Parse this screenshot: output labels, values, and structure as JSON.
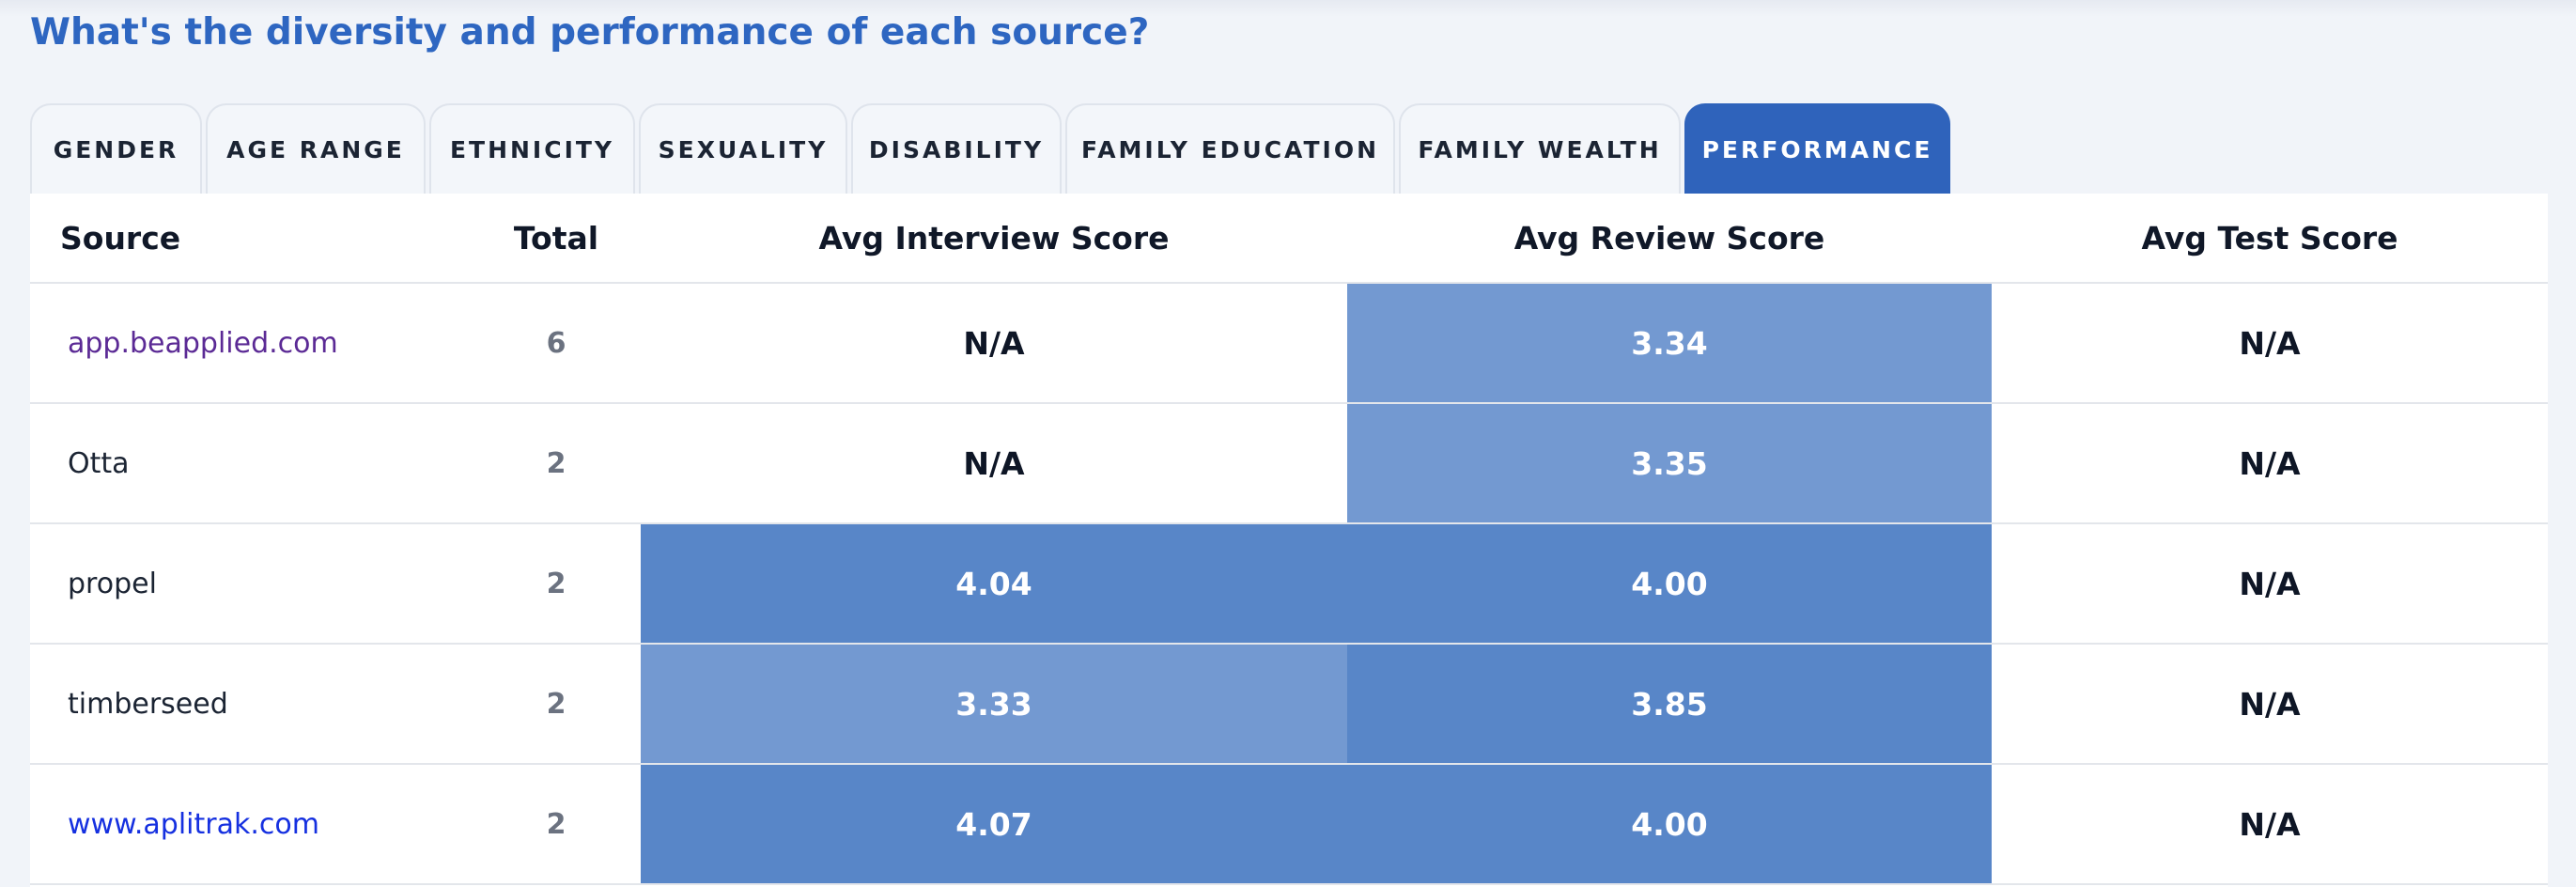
{
  "heading": "What's the diversity and performance of each source?",
  "tabs": [
    {
      "label": "GENDER",
      "active": false
    },
    {
      "label": "AGE RANGE",
      "active": false
    },
    {
      "label": "ETHNICITY",
      "active": false
    },
    {
      "label": "SEXUALITY",
      "active": false
    },
    {
      "label": "DISABILITY",
      "active": false
    },
    {
      "label": "FAMILY EDUCATION",
      "active": false
    },
    {
      "label": "FAMILY WEALTH",
      "active": false
    },
    {
      "label": "PERFORMANCE",
      "active": true
    }
  ],
  "colors": {
    "heading": "#2e66c1",
    "active_tab": "#2f63bb",
    "heat_strong": "#5886c8",
    "heat_light": "#7399d1"
  },
  "table": {
    "columns": [
      "Source",
      "Total",
      "Avg Interview Score",
      "Avg Review Score",
      "Avg Test Score"
    ],
    "rows": [
      {
        "source": "app.beapplied.com",
        "source_style": "visited-link",
        "total": "6",
        "interview": "N/A",
        "review": "3.34",
        "test": "N/A"
      },
      {
        "source": "Otta",
        "source_style": "plain",
        "total": "2",
        "interview": "N/A",
        "review": "3.35",
        "test": "N/A"
      },
      {
        "source": "propel",
        "source_style": "plain",
        "total": "2",
        "interview": "4.04",
        "review": "4.00",
        "test": "N/A"
      },
      {
        "source": "timberseed",
        "source_style": "plain",
        "total": "2",
        "interview": "3.33",
        "review": "3.85",
        "test": "N/A"
      },
      {
        "source": "www.aplitrak.com",
        "source_style": "link",
        "total": "2",
        "interview": "4.07",
        "review": "4.00",
        "test": "N/A"
      }
    ]
  }
}
